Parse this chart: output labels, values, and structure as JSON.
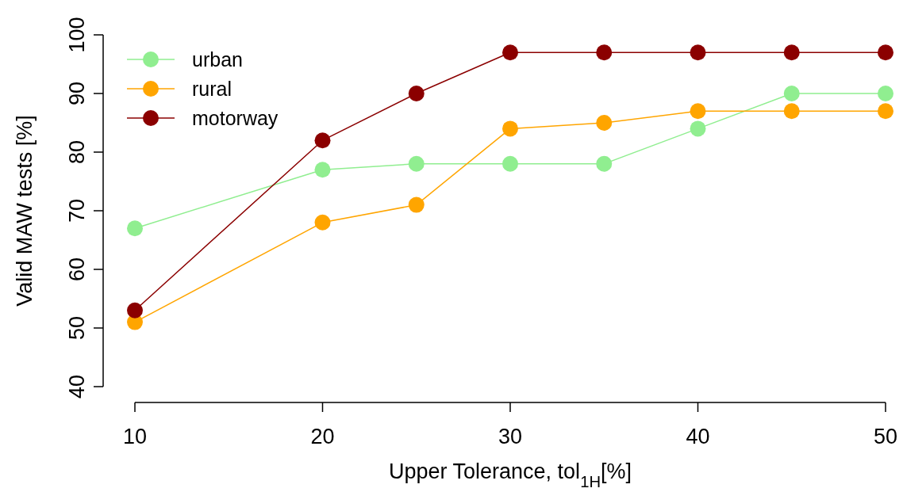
{
  "chart_data": {
    "type": "line",
    "xlabel": "Upper Tolerance, tol$_{1H}$[%]",
    "ylabel": "Valid MAW tests [%]",
    "x": [
      10,
      20,
      25,
      30,
      35,
      40,
      45,
      50
    ],
    "series": [
      {
        "name": "urban",
        "color": "#90ee90",
        "values": [
          67,
          77,
          78,
          78,
          78,
          84,
          90,
          90
        ]
      },
      {
        "name": "rural",
        "color": "#ffa500",
        "values": [
          51,
          68,
          71,
          84,
          85,
          87,
          87,
          87
        ]
      },
      {
        "name": "motorway",
        "color": "#8b0000",
        "values": [
          53,
          82,
          90,
          97,
          97,
          97,
          97,
          97
        ]
      }
    ],
    "xlim": [
      10,
      50
    ],
    "ylim": [
      40,
      100
    ],
    "xticks": [
      10,
      20,
      30,
      40,
      50
    ],
    "yticks": [
      40,
      50,
      60,
      70,
      80,
      90,
      100
    ],
    "grid": false,
    "legend": "top left",
    "marker": "circle",
    "line_style": "solid"
  }
}
